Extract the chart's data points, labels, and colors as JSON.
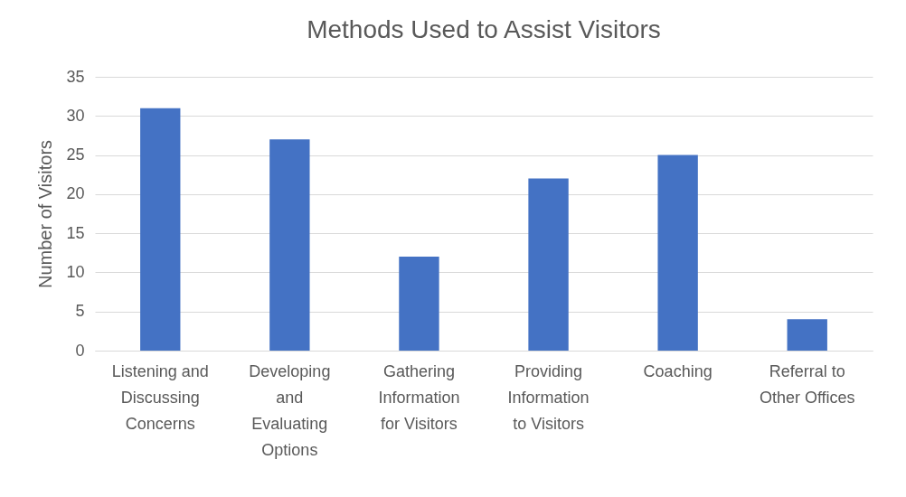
{
  "chart_data": {
    "type": "bar",
    "title": "Methods Used to Assist Visitors",
    "ylabel": "Number of Visitors",
    "categories": [
      "Listening and Discussing Concerns",
      "Developing and Evaluating Options",
      "Gathering Information for Visitors",
      "Providing Information to Visitors",
      "Coaching",
      "Referral to Other Offices"
    ],
    "values": [
      31,
      27,
      12,
      22,
      25,
      4
    ],
    "color": "#4472c4",
    "ylim": [
      0,
      35
    ],
    "yticks": [
      0,
      5,
      10,
      15,
      20,
      25,
      30,
      35
    ],
    "grid": "y"
  }
}
